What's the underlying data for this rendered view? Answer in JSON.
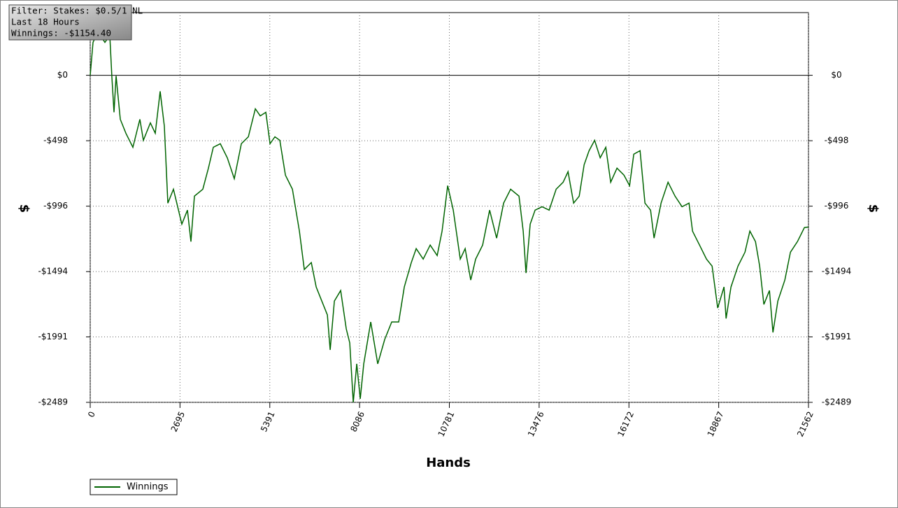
{
  "chart_data": {
    "type": "line",
    "info": [
      "Filter: Stakes: $0.5/1 NL",
      "Last  18 Hours",
      "Winnings: -$1154.40"
    ],
    "xlabel": "Hands",
    "ylabel": "$",
    "y2label": "$",
    "xlim": [
      0,
      21562
    ],
    "ylim": [
      -2489,
      477
    ],
    "xticks": [
      0,
      2695,
      5391,
      8086,
      10781,
      13476,
      16172,
      18867,
      21562
    ],
    "yticks": [
      {
        "value": 0,
        "label": "$0"
      },
      {
        "value": -498,
        "label": "-$498"
      },
      {
        "value": -996,
        "label": "-$996"
      },
      {
        "value": -1494,
        "label": "-$1494"
      },
      {
        "value": -1991,
        "label": "-$1991"
      },
      {
        "value": -2489,
        "label": "-$2489"
      }
    ],
    "grid": true,
    "legend": "bottom-left",
    "x": [
      0,
      84,
      231,
      441,
      588,
      651,
      714,
      777,
      903,
      1071,
      1281,
      1491,
      1596,
      1806,
      1953,
      2100,
      2226,
      2331,
      2499,
      2751,
      2919,
      3024,
      3129,
      3381,
      3549,
      3696,
      3906,
      4116,
      4326,
      4536,
      4746,
      4956,
      5103,
      5271,
      5397,
      5544,
      5691,
      5859,
      6069,
      6279,
      6426,
      6636,
      6783,
      6951,
      7119,
      7203,
      7329,
      7518,
      7686,
      7791,
      7896,
      8001,
      8106,
      8211,
      8421,
      8631,
      8841,
      9051,
      9261,
      9429,
      9639,
      9786,
      9996,
      10206,
      10416,
      10563,
      10731,
      10899,
      11109,
      11256,
      11424,
      11571,
      11781,
      11991,
      12201,
      12411,
      12621,
      12873,
      12999,
      13083,
      13209,
      13356,
      13566,
      13776,
      13986,
      14196,
      14343,
      14511,
      14679,
      14826,
      14973,
      15141,
      15309,
      15477,
      15624,
      15813,
      16023,
      16191,
      16317,
      16506,
      16653,
      16821,
      16926,
      17136,
      17346,
      17556,
      17766,
      17976,
      18081,
      18291,
      18501,
      18669,
      18837,
      19026,
      19089,
      19236,
      19446,
      19656,
      19803,
      19971,
      20097,
      20223,
      20391,
      20496,
      20643,
      20853,
      21021,
      21231,
      21441,
      21562
    ],
    "series": [
      {
        "name": "Winnings",
        "color": "#006400",
        "values": [
          0,
          250,
          330,
          250,
          303,
          -16,
          -282,
          -5,
          -335,
          -441,
          -548,
          -335,
          -495,
          -362,
          -441,
          -122,
          -388,
          -973,
          -867,
          -1133,
          -1026,
          -1266,
          -920,
          -867,
          -707,
          -548,
          -521,
          -628,
          -787,
          -521,
          -468,
          -255,
          -309,
          -282,
          -521,
          -468,
          -495,
          -760,
          -867,
          -1186,
          -1478,
          -1425,
          -1611,
          -1718,
          -1824,
          -2090,
          -1718,
          -1638,
          -1930,
          -2037,
          -2489,
          -2196,
          -2462,
          -2196,
          -1877,
          -2196,
          -2010,
          -1877,
          -1877,
          -1611,
          -1425,
          -1319,
          -1399,
          -1292,
          -1372,
          -1186,
          -840,
          -1026,
          -1399,
          -1319,
          -1558,
          -1399,
          -1292,
          -1026,
          -1239,
          -973,
          -867,
          -920,
          -1186,
          -1505,
          -1133,
          -1026,
          -1000,
          -1026,
          -867,
          -814,
          -734,
          -973,
          -920,
          -681,
          -575,
          -495,
          -628,
          -548,
          -814,
          -707,
          -760,
          -840,
          -601,
          -574,
          -973,
          -1026,
          -1239,
          -973,
          -814,
          -920,
          -1000,
          -973,
          -1186,
          -1292,
          -1399,
          -1452,
          -1771,
          -1611,
          -1851,
          -1611,
          -1452,
          -1346,
          -1186,
          -1266,
          -1452,
          -1744,
          -1638,
          -1957,
          -1718,
          -1558,
          -1346,
          -1266,
          -1159,
          -1154.4
        ]
      }
    ]
  }
}
